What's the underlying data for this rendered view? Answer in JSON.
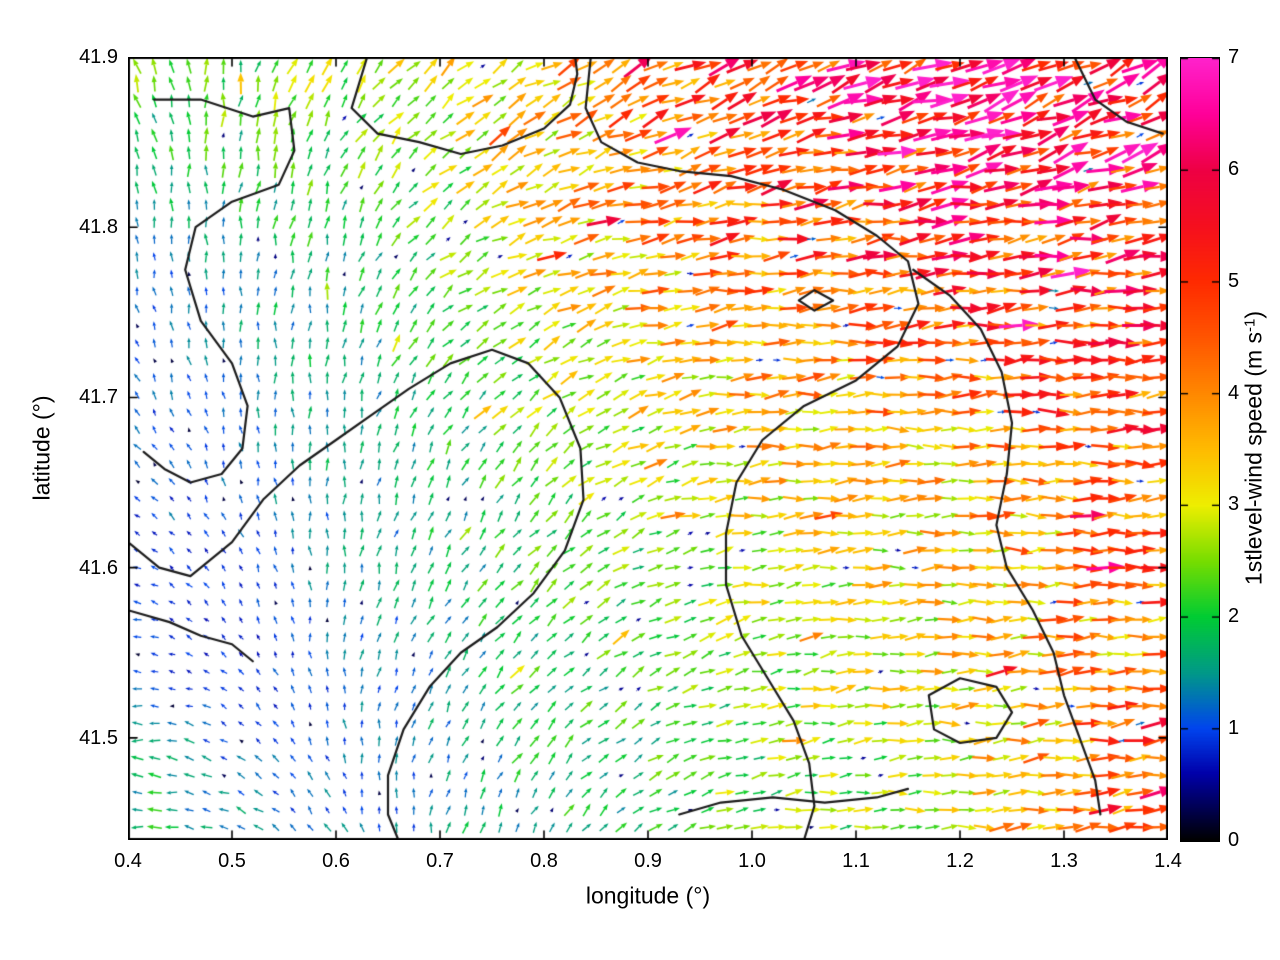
{
  "figure": {
    "background": "#ffffff"
  },
  "chart_data": {
    "type": "quiver",
    "title": "",
    "xlabel": "longitude (°)",
    "ylabel": "latitude (°)",
    "xlim": [
      0.4,
      1.4
    ],
    "ylim": [
      41.44,
      41.9
    ],
    "grid": false,
    "x_ticks": {
      "values": [
        0.4,
        0.5,
        0.6,
        0.7,
        0.8,
        0.9,
        1.0,
        1.1,
        1.2,
        1.3,
        1.4
      ],
      "labels": [
        "0.4",
        "0.5",
        "0.6",
        "0.7",
        "0.8",
        "0.9",
        "1.0",
        "1.1",
        "1.2",
        "1.3",
        "1.4"
      ]
    },
    "y_ticks": {
      "values": [
        41.5,
        41.6,
        41.7,
        41.8,
        41.9
      ],
      "labels": [
        "41.5",
        "41.6",
        "41.7",
        "41.8",
        "41.9"
      ]
    },
    "colorbar": {
      "label_prefix": "1stlevel-wind speed (m s",
      "label_sup": "-1",
      "label_suffix": ")",
      "min": 0,
      "max": 7,
      "tick_values": [
        0,
        1,
        2,
        3,
        4,
        5,
        6,
        7
      ],
      "tick_labels": [
        "0",
        "1",
        "2",
        "3",
        "4",
        "5",
        "6",
        "7"
      ],
      "palette_stops": [
        [
          0.0,
          "#000000"
        ],
        [
          0.6,
          "#0000aa"
        ],
        [
          1.0,
          "#0044ee"
        ],
        [
          1.5,
          "#009988"
        ],
        [
          2.0,
          "#00cc33"
        ],
        [
          2.5,
          "#77dd00"
        ],
        [
          3.0,
          "#eeee00"
        ],
        [
          3.5,
          "#ffbb00"
        ],
        [
          4.0,
          "#ff8800"
        ],
        [
          4.5,
          "#ff5500"
        ],
        [
          5.0,
          "#ff2a00"
        ],
        [
          5.5,
          "#f50f1e"
        ],
        [
          6.0,
          "#ee0044"
        ],
        [
          6.5,
          "#ff0099"
        ],
        [
          7.0,
          "#ff22cc"
        ]
      ]
    },
    "wind_field": {
      "lons": [
        0.4,
        0.6,
        0.8,
        1.0,
        1.2,
        1.4
      ],
      "lats": [
        41.44,
        41.55,
        41.66,
        41.78,
        41.9
      ],
      "speed": [
        [
          2.2,
          1.2,
          1.8,
          2.2,
          2.8,
          5.5
        ],
        [
          1.0,
          1.2,
          2.0,
          2.5,
          3.2,
          4.2
        ],
        [
          1.0,
          1.5,
          2.3,
          3.2,
          3.6,
          4.5
        ],
        [
          1.2,
          1.8,
          3.3,
          4.3,
          5.0,
          5.2
        ],
        [
          2.5,
          2.8,
          3.5,
          5.2,
          6.2,
          5.5
        ]
      ],
      "direction_deg": [
        [
          180,
          120,
          60,
          10,
          0,
          10
        ],
        [
          180,
          90,
          45,
          15,
          5,
          5
        ],
        [
          135,
          90,
          50,
          5,
          0,
          0
        ],
        [
          100,
          80,
          20,
          5,
          5,
          10
        ],
        [
          110,
          60,
          30,
          25,
          20,
          30
        ]
      ]
    },
    "contours": [
      [
        [
          0.425,
          41.875
        ],
        [
          0.47,
          41.875
        ],
        [
          0.52,
          41.865
        ],
        [
          0.555,
          41.87
        ],
        [
          0.56,
          41.845
        ],
        [
          0.545,
          41.825
        ],
        [
          0.5,
          41.815
        ],
        [
          0.465,
          41.8
        ],
        [
          0.455,
          41.775
        ],
        [
          0.47,
          41.745
        ],
        [
          0.5,
          41.72
        ],
        [
          0.515,
          41.695
        ],
        [
          0.51,
          41.67
        ],
        [
          0.49,
          41.655
        ],
        [
          0.46,
          41.65
        ],
        [
          0.435,
          41.658
        ],
        [
          0.415,
          41.668
        ]
      ],
      [
        [
          0.63,
          41.9
        ],
        [
          0.615,
          41.87
        ],
        [
          0.64,
          41.855
        ],
        [
          0.68,
          41.85
        ],
        [
          0.72,
          41.843
        ],
        [
          0.76,
          41.848
        ],
        [
          0.8,
          41.858
        ],
        [
          0.825,
          41.872
        ],
        [
          0.832,
          41.89
        ],
        [
          0.83,
          41.9
        ]
      ],
      [
        [
          0.845,
          41.9
        ],
        [
          0.84,
          41.87
        ],
        [
          0.855,
          41.85
        ],
        [
          0.89,
          41.838
        ],
        [
          0.93,
          41.833
        ],
        [
          0.98,
          41.83
        ],
        [
          1.03,
          41.822
        ],
        [
          1.08,
          41.81
        ],
        [
          1.12,
          41.795
        ],
        [
          1.15,
          41.78
        ],
        [
          1.16,
          41.755
        ],
        [
          1.14,
          41.73
        ],
        [
          1.1,
          41.71
        ],
        [
          1.05,
          41.695
        ],
        [
          1.01,
          41.675
        ],
        [
          0.985,
          41.65
        ],
        [
          0.975,
          41.62
        ],
        [
          0.975,
          41.59
        ],
        [
          0.99,
          41.56
        ],
        [
          1.015,
          41.535
        ],
        [
          1.04,
          41.51
        ],
        [
          1.055,
          41.485
        ],
        [
          1.06,
          41.46
        ],
        [
          1.05,
          41.44
        ]
      ],
      [
        [
          1.155,
          41.775
        ],
        [
          1.19,
          41.76
        ],
        [
          1.22,
          41.74
        ],
        [
          1.24,
          41.715
        ],
        [
          1.25,
          41.685
        ],
        [
          1.245,
          41.655
        ],
        [
          1.235,
          41.625
        ],
        [
          1.245,
          41.6
        ],
        [
          1.27,
          41.575
        ],
        [
          1.29,
          41.55
        ],
        [
          1.3,
          41.525
        ],
        [
          1.315,
          41.5
        ],
        [
          1.33,
          41.475
        ],
        [
          1.335,
          41.455
        ]
      ],
      [
        [
          0.4,
          41.615
        ],
        [
          0.43,
          41.6
        ],
        [
          0.46,
          41.595
        ],
        [
          0.5,
          41.615
        ],
        [
          0.53,
          41.64
        ],
        [
          0.565,
          41.66
        ],
        [
          0.6,
          41.675
        ],
        [
          0.635,
          41.69
        ],
        [
          0.67,
          41.705
        ],
        [
          0.71,
          41.72
        ],
        [
          0.75,
          41.728
        ],
        [
          0.785,
          41.72
        ],
        [
          0.815,
          41.7
        ],
        [
          0.835,
          41.67
        ],
        [
          0.838,
          41.64
        ],
        [
          0.82,
          41.61
        ],
        [
          0.79,
          41.585
        ],
        [
          0.755,
          41.565
        ],
        [
          0.72,
          41.55
        ],
        [
          0.69,
          41.53
        ],
        [
          0.665,
          41.505
        ],
        [
          0.65,
          41.478
        ],
        [
          0.65,
          41.455
        ],
        [
          0.66,
          41.44
        ]
      ],
      [
        [
          0.4,
          41.575
        ],
        [
          0.44,
          41.568
        ],
        [
          0.47,
          41.56
        ],
        [
          0.5,
          41.555
        ],
        [
          0.52,
          41.545
        ]
      ],
      [
        [
          1.045,
          41.757
        ],
        [
          1.06,
          41.763
        ],
        [
          1.078,
          41.757
        ],
        [
          1.06,
          41.751
        ],
        [
          1.045,
          41.757
        ]
      ],
      [
        [
          0.93,
          41.455
        ],
        [
          0.97,
          41.462
        ],
        [
          1.02,
          41.465
        ],
        [
          1.07,
          41.462
        ],
        [
          1.12,
          41.465
        ],
        [
          1.15,
          41.47
        ]
      ],
      [
        [
          1.17,
          41.525
        ],
        [
          1.2,
          41.535
        ],
        [
          1.235,
          41.53
        ],
        [
          1.25,
          41.515
        ],
        [
          1.235,
          41.5
        ],
        [
          1.2,
          41.497
        ],
        [
          1.175,
          41.505
        ],
        [
          1.17,
          41.525
        ]
      ],
      [
        [
          1.31,
          41.9
        ],
        [
          1.33,
          41.875
        ],
        [
          1.36,
          41.862
        ],
        [
          1.395,
          41.855
        ]
      ]
    ]
  }
}
